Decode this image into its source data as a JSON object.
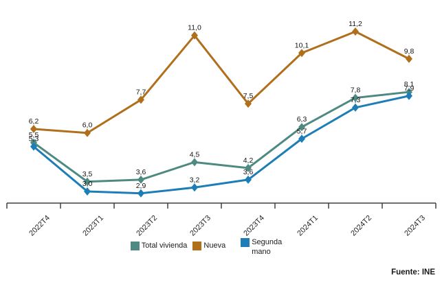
{
  "chart_data": {
    "type": "line",
    "title": "",
    "xlabel": "",
    "ylabel": "",
    "categories": [
      "2022T4",
      "2023T1",
      "2023T2",
      "2023T3",
      "2023T4",
      "2024T1",
      "2024T2",
      "2024T3"
    ],
    "series": [
      {
        "name": "Total vivienda",
        "color": "#4e8a82",
        "values": [
          5.5,
          3.5,
          3.6,
          4.5,
          4.2,
          6.3,
          7.8,
          8.1
        ],
        "labels": [
          "5,5",
          "3,5",
          "3,6",
          "4,5",
          "4,2",
          "6,3",
          "7,8",
          "8,1"
        ]
      },
      {
        "name": "Nueva",
        "color": "#b06f1b",
        "values": [
          6.2,
          6.0,
          7.7,
          11.0,
          7.5,
          10.1,
          11.2,
          9.8
        ],
        "labels": [
          "6,2",
          "6,0",
          "7,7",
          "11,0",
          "7,5",
          "10,1",
          "11,2",
          "9,8"
        ]
      },
      {
        "name": "Segunda mano",
        "color": "#1d7db6",
        "values": [
          5.3,
          3.0,
          2.9,
          3.2,
          3.6,
          5.7,
          7.3,
          7.9
        ],
        "labels": [
          "5,3",
          "3,0",
          "2,9",
          "3,2",
          "3,6",
          "5,7",
          "7,3",
          "7,9"
        ]
      }
    ],
    "marker": "diamond",
    "grid": false,
    "y_axis_visible": false,
    "legend_position": "bottom",
    "ylim": [
      2.4,
      11.2
    ],
    "decimal_separator": ","
  },
  "footer": {
    "source": "Fuente: INE"
  }
}
